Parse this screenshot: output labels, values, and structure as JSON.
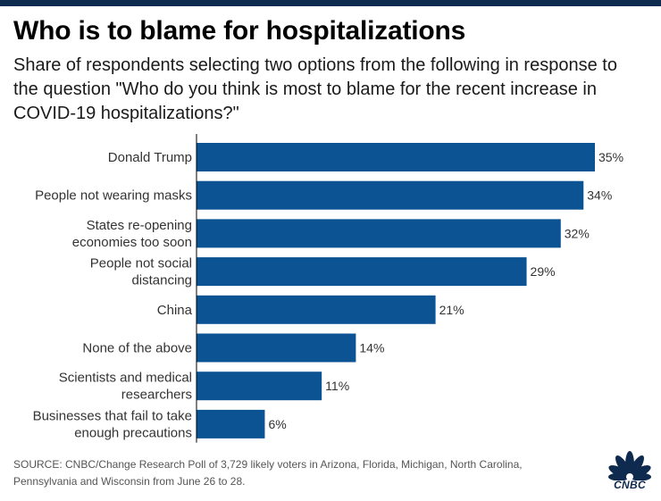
{
  "header": {
    "title": "Who is to blame for hospitalizations",
    "subtitle": "Share of respondents selecting two options from the following in response to the question \"Who do you think is most to blame for the recent increase in COVID-19 hospitalizations?\""
  },
  "footer": {
    "source": "SOURCE: CNBC/Change Research Poll of 3,729 likely voters in Arizona, Florida, Michigan, North Carolina, Pennsylvania and Wisconsin from June 26 to 28.",
    "logo_text": "CNBC",
    "logo_icon": "peacock-icon"
  },
  "colors": {
    "bar": "#0c5394",
    "axis": "#000000",
    "top_bar": "#0e2a4e"
  },
  "chart_data": {
    "type": "bar",
    "orientation": "horizontal",
    "title": "Who is to blame for hospitalizations",
    "xlabel": "",
    "ylabel": "",
    "xlim": [
      0,
      35
    ],
    "grid": false,
    "categories": [
      [
        "Donald Trump"
      ],
      [
        "People not wearing masks"
      ],
      [
        "States re-opening",
        "economies too soon"
      ],
      [
        "People not social",
        "distancing"
      ],
      [
        "China"
      ],
      [
        "None of the above"
      ],
      [
        "Scientists and medical",
        "researchers"
      ],
      [
        "Businesses that fail to take",
        "enough precautions"
      ]
    ],
    "values": [
      35,
      34,
      32,
      29,
      21,
      14,
      11,
      6
    ],
    "labels": [
      "35%",
      "34%",
      "32%",
      "29%",
      "21%",
      "14%",
      "11%",
      "6%"
    ]
  }
}
